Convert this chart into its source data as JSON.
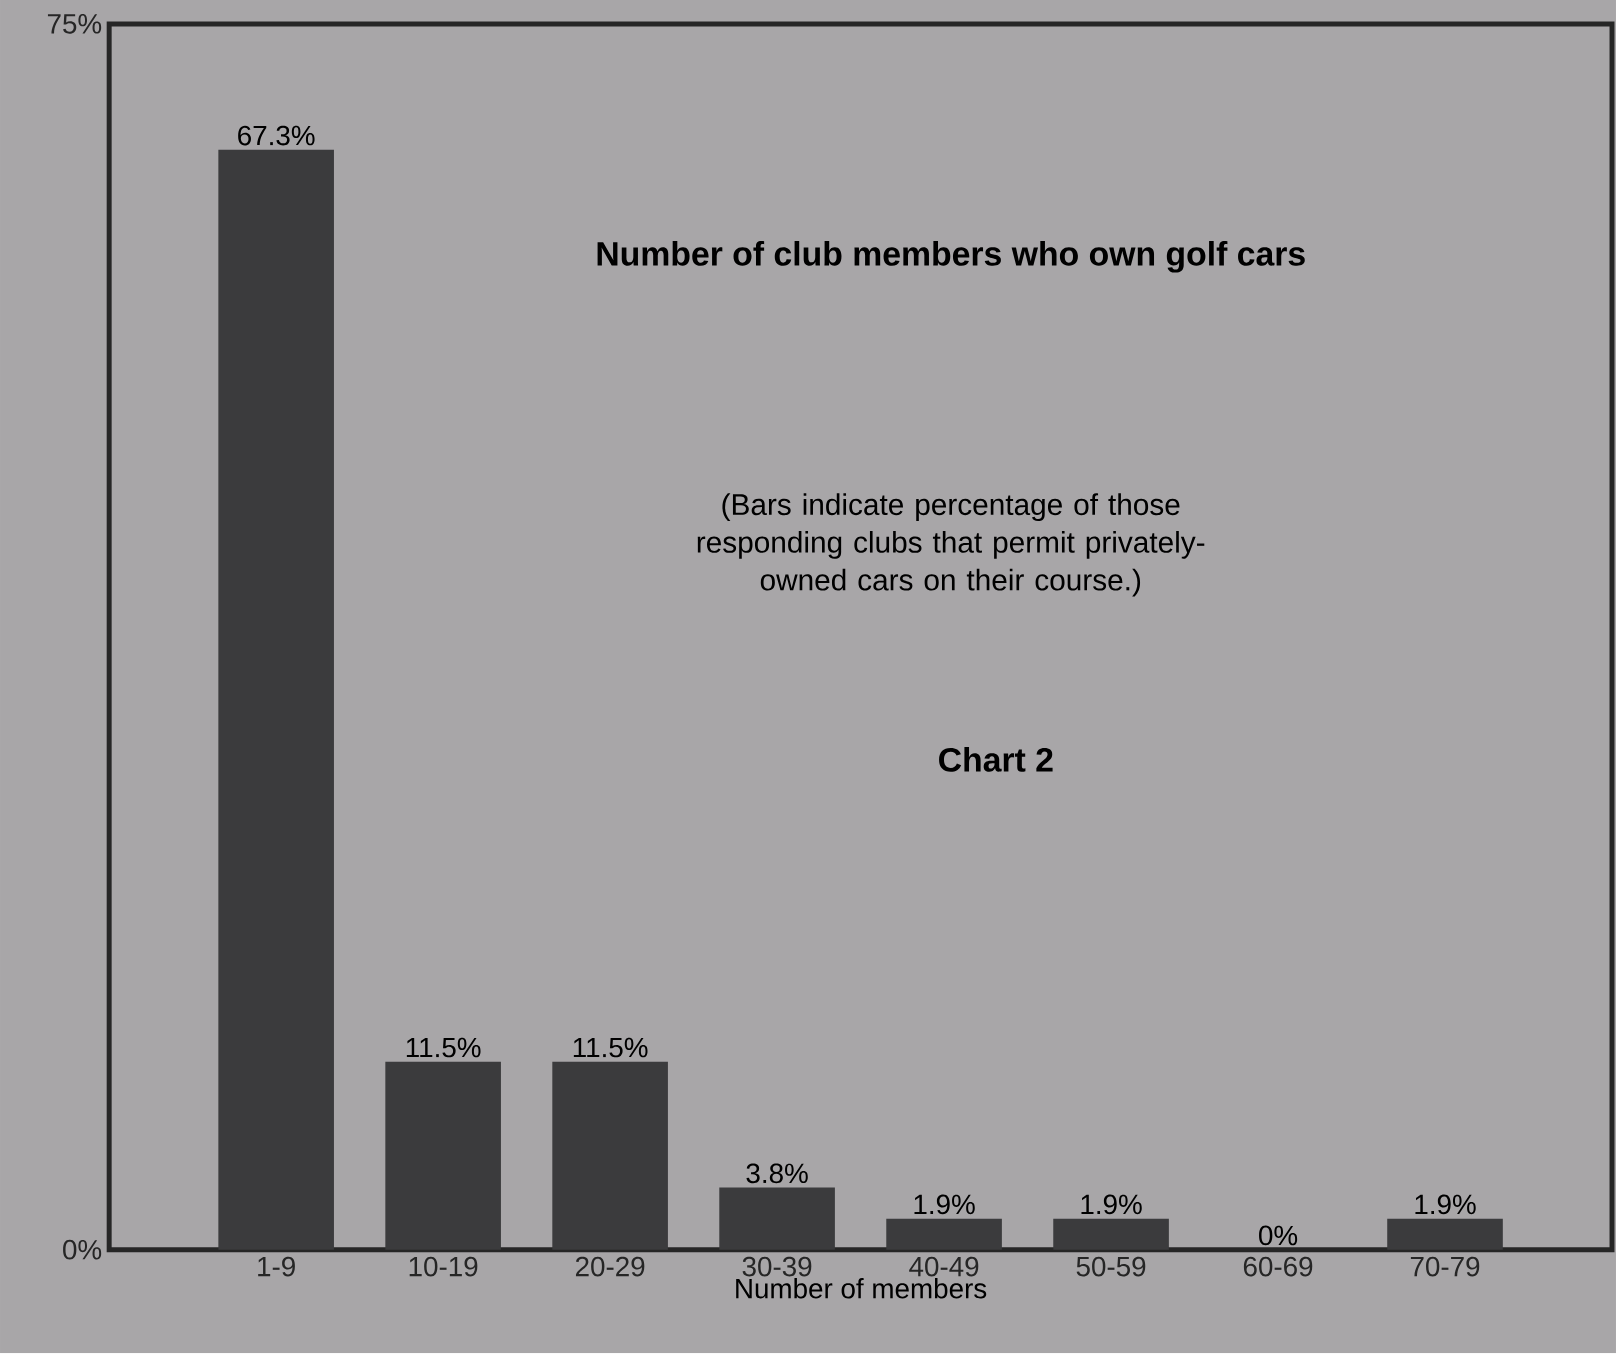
{
  "chart_data": {
    "type": "bar",
    "title": "Number of club members who own golf cars",
    "subtitle": "(Bars indicate percentage of those responding clubs that permit privately-owned cars on their course.)",
    "annotations": [
      "Chart 2"
    ],
    "xlabel": "Number of members",
    "categories": [
      "1-9",
      "10-19",
      "20-29",
      "30-39",
      "40-49",
      "50-59",
      "60-69",
      "70-79"
    ],
    "values": [
      67.3,
      11.5,
      11.5,
      3.8,
      1.9,
      1.9,
      0,
      1.9
    ],
    "value_labels": [
      "67.3%",
      "11.5%",
      "11.5%",
      "3.8%",
      "1.9%",
      "1.9%",
      "0%",
      "1.9%"
    ],
    "color": "#3b3b3d",
    "ylim": [
      0,
      75
    ],
    "yticks": [
      {
        "value": 0,
        "label": "0%"
      },
      {
        "value": 75,
        "label": "75%"
      }
    ]
  }
}
